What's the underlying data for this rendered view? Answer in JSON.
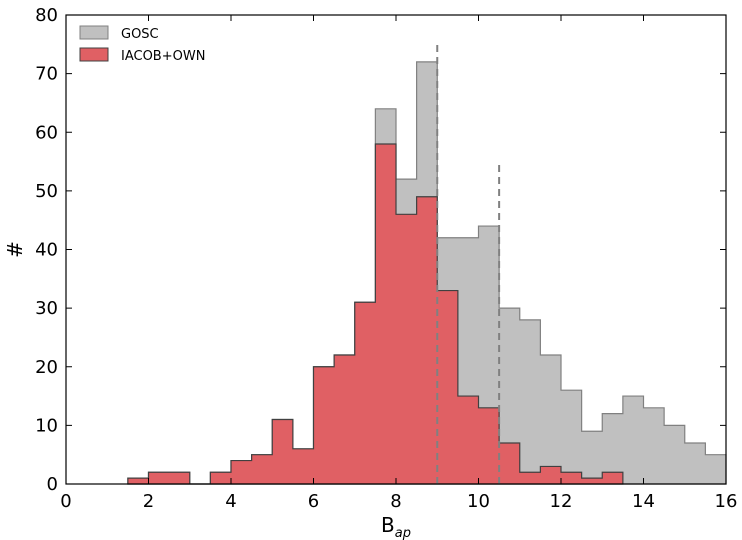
{
  "chart_data": {
    "type": "bar",
    "histtype": "stepfilled",
    "xlabel": "B",
    "xlabel_subscript": "ap",
    "ylabel": "#",
    "xlim": [
      0,
      16
    ],
    "ylim": [
      0,
      80
    ],
    "xticks": [
      "0",
      "2",
      "4",
      "6",
      "8",
      "10",
      "12",
      "14",
      "16"
    ],
    "yticks": [
      "0",
      "10",
      "20",
      "30",
      "40",
      "50",
      "60",
      "70",
      "80"
    ],
    "bin_width": 0.5,
    "bin_start": 1.5,
    "grid": false,
    "legend_position": "top-left",
    "series": [
      {
        "name": "GOSC",
        "color": "#c0c0c0",
        "edge_color": "#808080",
        "values": [
          1,
          2,
          2,
          0,
          2,
          4,
          5,
          11,
          6,
          20,
          22,
          31,
          64,
          52,
          72,
          42,
          42,
          44,
          30,
          28,
          22,
          16,
          9,
          12,
          15,
          13,
          10,
          7,
          5
        ]
      },
      {
        "name": "IACOB+OWN",
        "color": "#e06064",
        "edge_color": "#404040",
        "values": [
          1,
          2,
          2,
          0,
          2,
          4,
          5,
          11,
          6,
          20,
          22,
          31,
          58,
          46,
          49,
          33,
          15,
          13,
          7,
          2,
          3,
          2,
          1,
          2
        ]
      }
    ],
    "reference_lines": [
      {
        "x": 9.0,
        "y_top": 75,
        "style": "dashed",
        "color": "#808080"
      },
      {
        "x": 10.5,
        "y_top": 55,
        "style": "dashed",
        "color": "#808080"
      }
    ]
  }
}
